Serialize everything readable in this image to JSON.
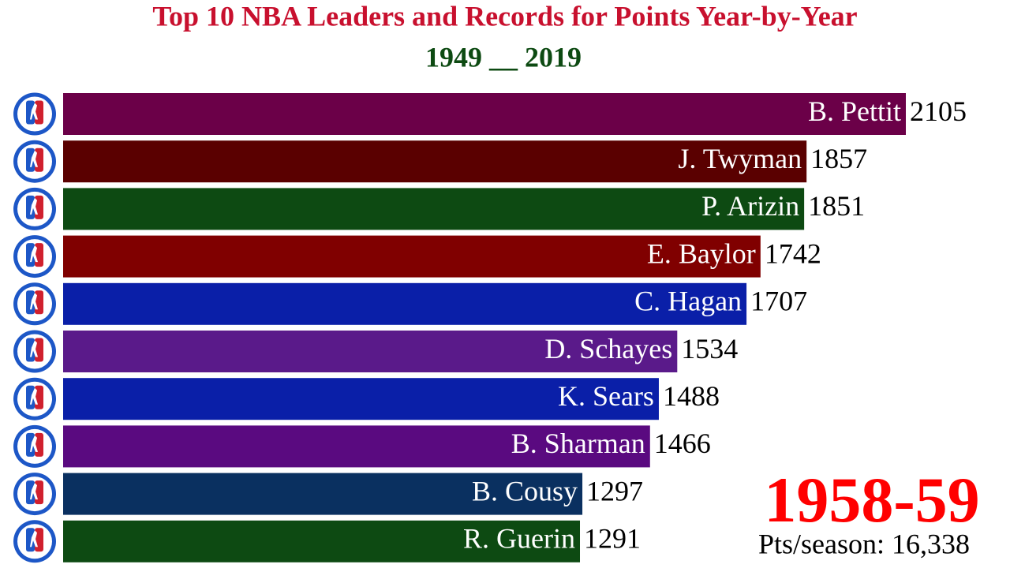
{
  "chart_data": {
    "type": "bar",
    "orientation": "horizontal",
    "title": "Top 10 NBA Leaders and Records for Points Year-by-Year",
    "subtitle": "1949 __ 2019",
    "categories": [
      "B. Pettit",
      "J. Twyman",
      "P. Arizin",
      "E. Baylor",
      "C. Hagan",
      "D. Schayes",
      "K. Sears",
      "B. Sharman",
      "B. Cousy",
      "R. Guerin"
    ],
    "values": [
      2105,
      1857,
      1851,
      1742,
      1707,
      1534,
      1488,
      1466,
      1297,
      1291
    ],
    "colors": [
      "#6b0048",
      "#5a0000",
      "#0d4a12",
      "#800000",
      "#0a1fa8",
      "#5a1a8a",
      "#0a1fa8",
      "#5a0a80",
      "#0a3060",
      "#0d4a12"
    ],
    "season_label": "1958-59",
    "total_label": "Pts/season: 16,338"
  }
}
